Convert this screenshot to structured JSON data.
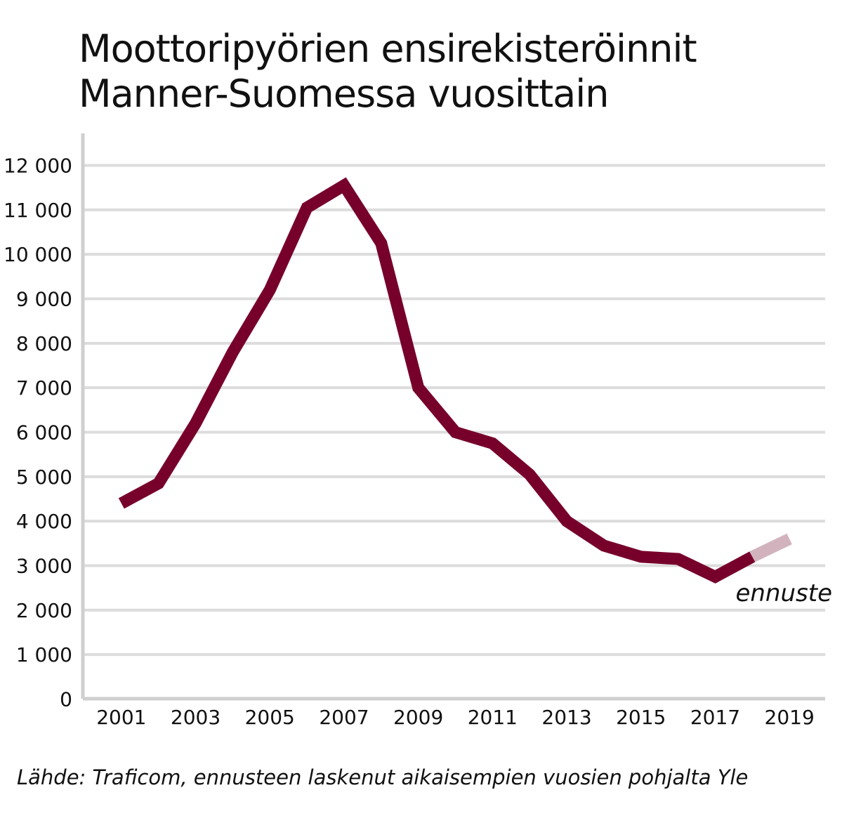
{
  "chart_data": {
    "type": "line",
    "title": [
      "Moottoripyörien ensirekisteröinnit",
      "Manner-Suomessa vuosittain"
    ],
    "x": [
      2001,
      2002,
      2003,
      2004,
      2005,
      2006,
      2007,
      2008,
      2009,
      2010,
      2011,
      2012,
      2013,
      2014,
      2015,
      2016,
      2017,
      2018
    ],
    "series": [
      {
        "values": [
          4400,
          4850,
          6200,
          7800,
          9200,
          11050,
          11550,
          10250,
          7000,
          6000,
          5750,
          5050,
          4000,
          3450,
          3200,
          3150,
          2750,
          3200
        ]
      }
    ],
    "forecast": {
      "label": "ennuste",
      "x": [
        2018,
        2019
      ],
      "values": [
        3200,
        3600
      ]
    },
    "x_ticks": [
      "2001",
      "2003",
      "2005",
      "2007",
      "2009",
      "2011",
      "2013",
      "2015",
      "2017",
      "2019"
    ],
    "y_ticks": [
      "0",
      "1 000",
      "2 000",
      "3 000",
      "4 000",
      "5 000",
      "6 000",
      "7 000",
      "8 000",
      "9 000",
      "10 000",
      "11 000",
      "12 000"
    ],
    "xlim": [
      2000,
      2020
    ],
    "ylim": [
      0,
      12000
    ],
    "grid": true,
    "colors": {
      "line": "#77002b",
      "forecast": "#d2b3bd",
      "grid": "#dcdcdc",
      "axis": "#cfcfcf"
    },
    "source": "Lähde: Traficom, ennusteen laskenut aikaisempien vuosien pohjalta Yle"
  }
}
